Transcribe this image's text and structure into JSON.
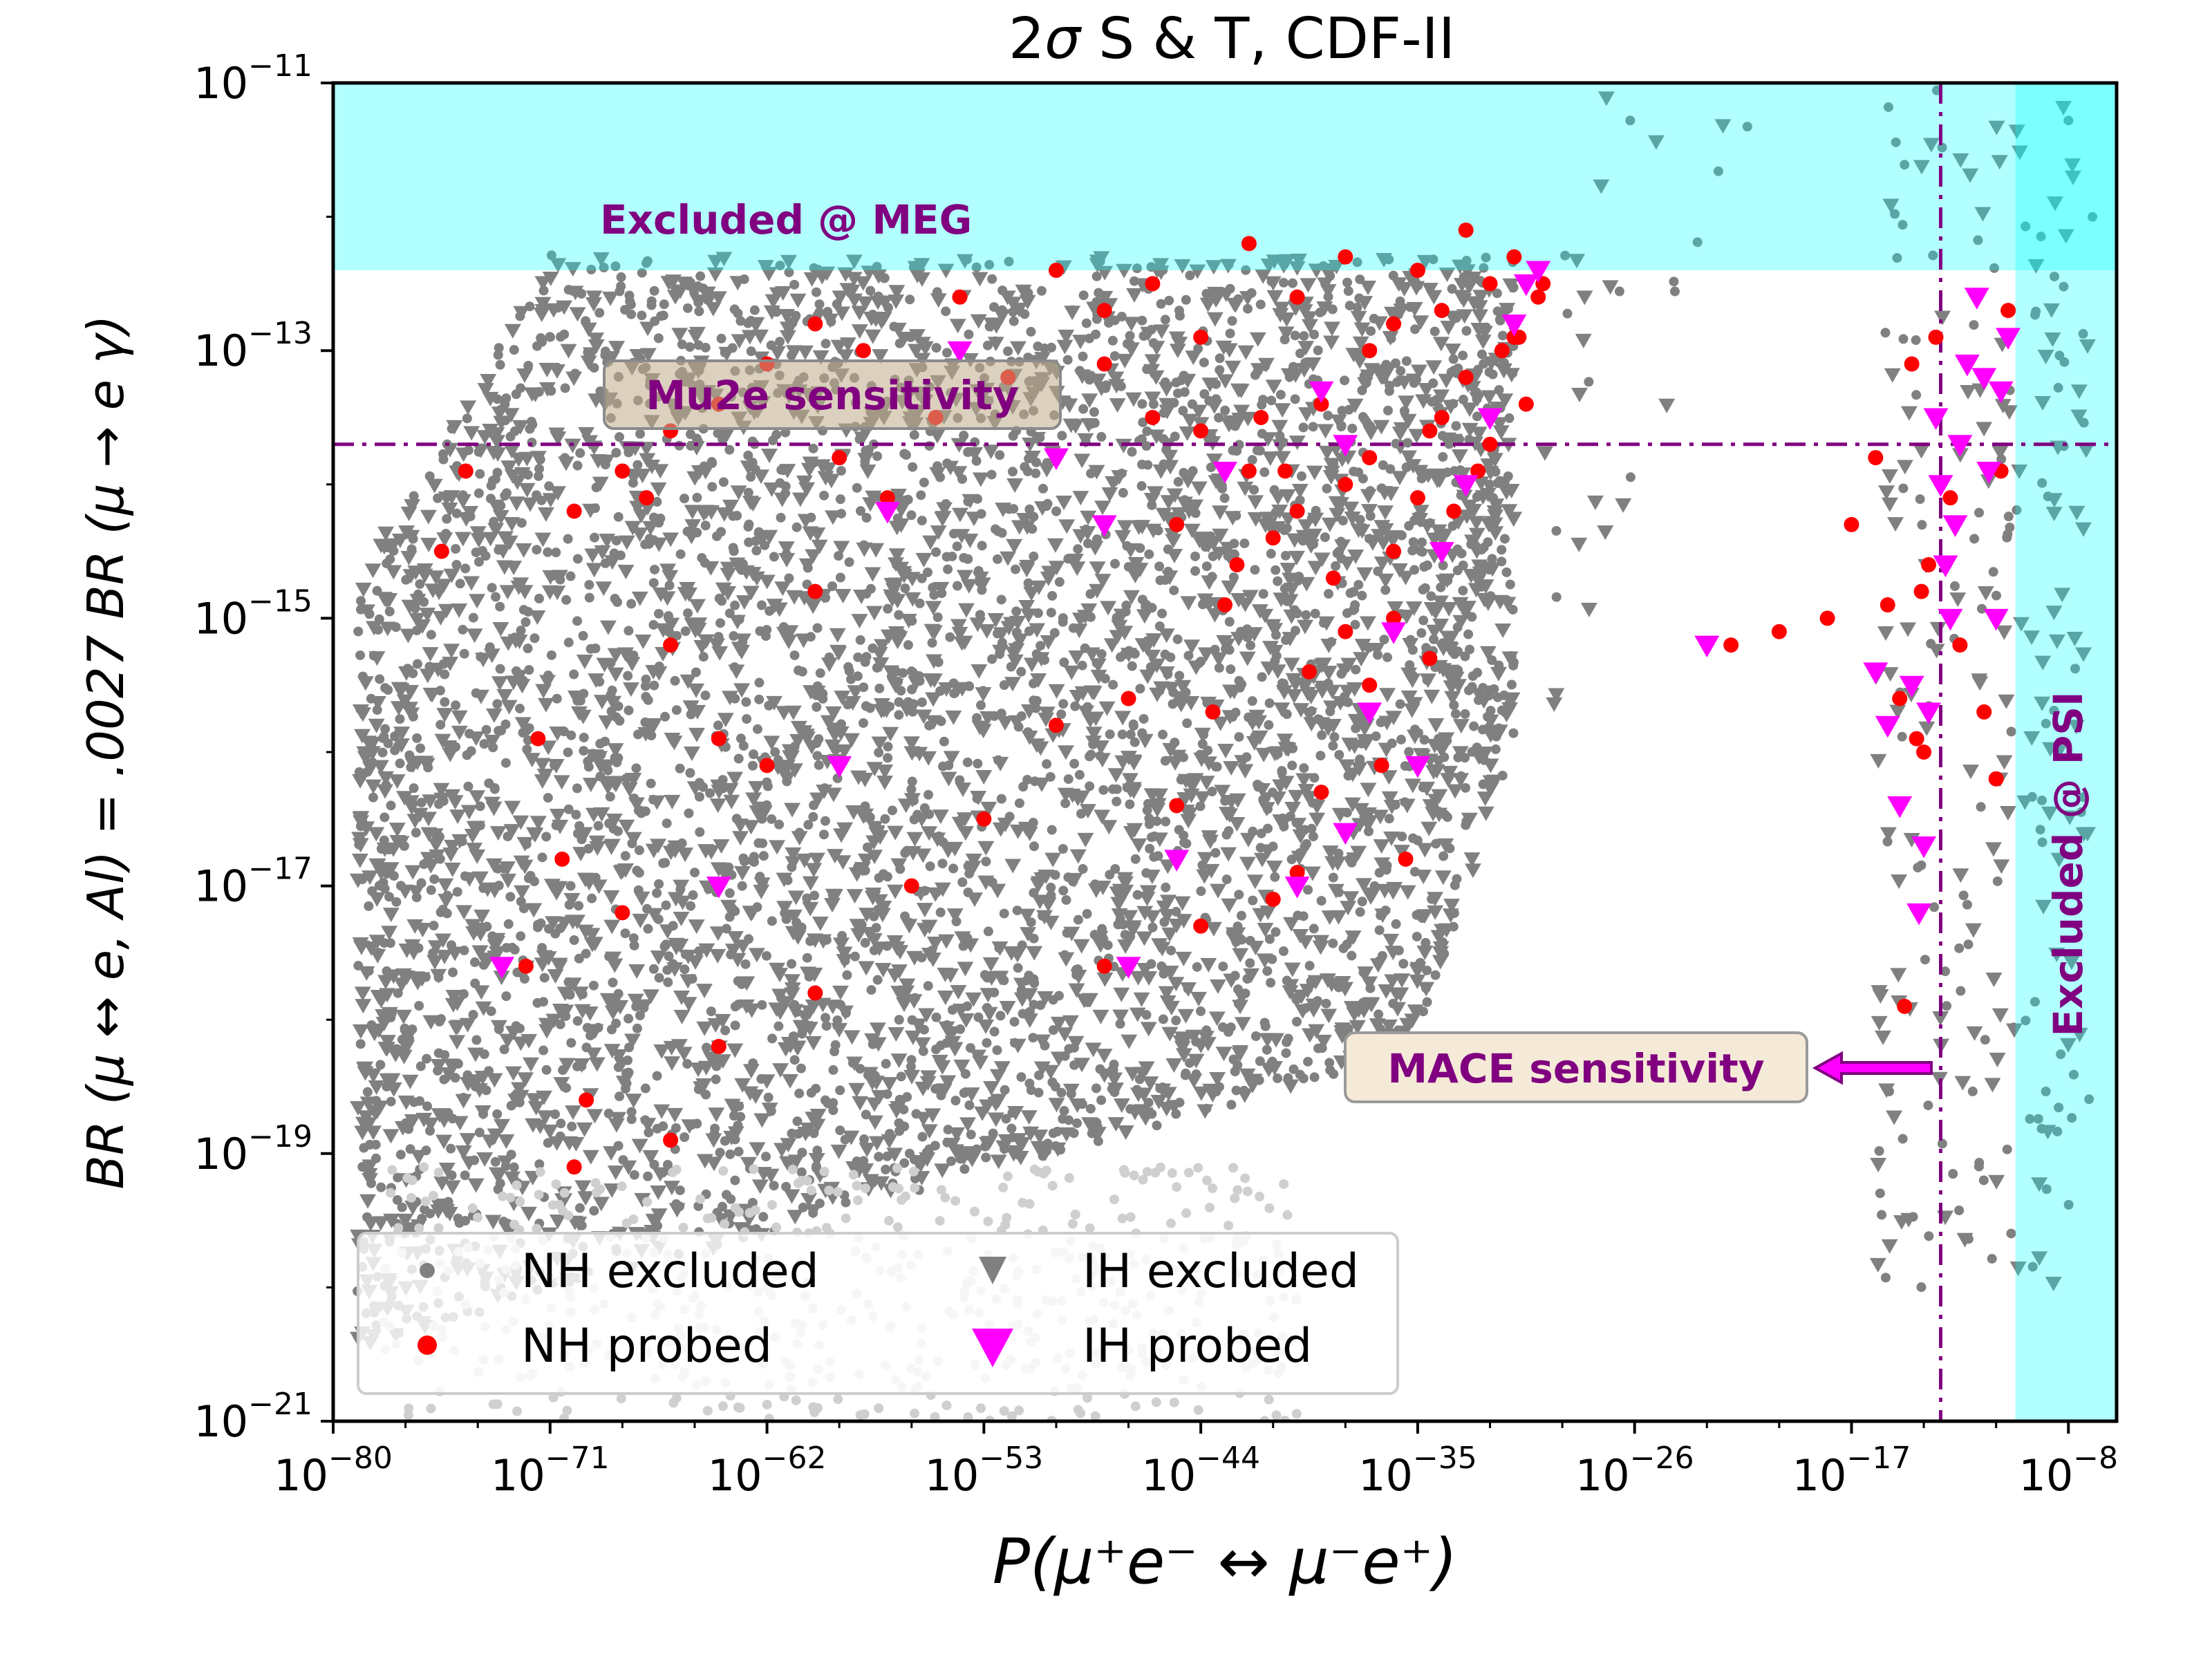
{
  "chart_data": {
    "type": "scatter",
    "title_prefix": "2",
    "title_sigma": "σ",
    "title_suffix": " S & T, CDF-II",
    "xlabel": "P(μ⁺e⁻ ↔ μ⁻e⁺)",
    "ylabel": "BR (μ ↔ e, Al) = .0027 BR (μ → e γ)",
    "x_scale": "log",
    "y_scale": "log",
    "xlim_exp": [
      -80,
      -6
    ],
    "ylim_exp": [
      -21,
      -11
    ],
    "x_ticks": [
      {
        "base": "10",
        "exp": "−80",
        "value": -80
      },
      {
        "base": "10",
        "exp": "−71",
        "value": -71
      },
      {
        "base": "10",
        "exp": "−62",
        "value": -62
      },
      {
        "base": "10",
        "exp": "−53",
        "value": -53
      },
      {
        "base": "10",
        "exp": "−44",
        "value": -44
      },
      {
        "base": "10",
        "exp": "−35",
        "value": -35
      },
      {
        "base": "10",
        "exp": "−26",
        "value": -26
      },
      {
        "base": "10",
        "exp": "−17",
        "value": -17
      },
      {
        "base": "10",
        "exp": "−8",
        "value": -8
      }
    ],
    "y_ticks": [
      {
        "base": "10",
        "exp": "−11",
        "value": -11
      },
      {
        "base": "10",
        "exp": "−13",
        "value": -13
      },
      {
        "base": "10",
        "exp": "−15",
        "value": -15
      },
      {
        "base": "10",
        "exp": "−17",
        "value": -17
      },
      {
        "base": "10",
        "exp": "−19",
        "value": -19
      },
      {
        "base": "10",
        "exp": "−21",
        "value": -21
      }
    ],
    "excluded_regions": [
      {
        "label": "Excluded @ MEG",
        "axis": "y",
        "from_exp": -12.4,
        "to_exp": -11,
        "color": "#00ffff",
        "alpha": 0.3
      },
      {
        "label": "Excluded @ PSI",
        "axis": "x",
        "from_exp": -10.2,
        "to_exp": -6,
        "color": "#00ffff",
        "alpha": 0.3
      }
    ],
    "sensitivity_lines": [
      {
        "label": "Mu2e sensitivity",
        "axis": "y",
        "value_exp": -13.7,
        "color": "#800080",
        "style": "dashdot"
      },
      {
        "label": "MACE sensitivity",
        "axis": "x",
        "value_exp": -13.3,
        "color": "#800080",
        "style": "dashdot"
      }
    ],
    "series": [
      {
        "name": "NH excluded",
        "marker": "circle",
        "color": "#808080"
      },
      {
        "name": "IH excluded",
        "marker": "triangle-down",
        "color": "#808080"
      },
      {
        "name": "NH probed",
        "marker": "circle",
        "color": "#ff0000",
        "points_exp": [
          [
            -74.5,
            -13.9
          ],
          [
            -75.5,
            -14.5
          ],
          [
            -71.5,
            -15.9
          ],
          [
            -70.5,
            -16.8
          ],
          [
            -69.5,
            -18.6
          ],
          [
            -67,
            -14.1
          ],
          [
            -66,
            -15.2
          ],
          [
            -64,
            -15.9
          ],
          [
            -62,
            -16.1
          ],
          [
            -60,
            -14.8
          ],
          [
            -59,
            -13.8
          ],
          [
            -57,
            -14.1
          ],
          [
            -55,
            -13.5
          ],
          [
            -48,
            -13.1
          ],
          [
            -46,
            -13.5
          ],
          [
            -45,
            -14.3
          ],
          [
            -44,
            -13.6
          ],
          [
            -43,
            -14.9
          ],
          [
            -42,
            -13.9
          ],
          [
            -41,
            -14.4
          ],
          [
            -40,
            -14.2
          ],
          [
            -39,
            -13.4
          ],
          [
            -38,
            -14.0
          ],
          [
            -37,
            -13.8
          ],
          [
            -36,
            -14.5
          ],
          [
            -35,
            -14.1
          ],
          [
            -34,
            -13.5
          ],
          [
            -33,
            -13.2
          ],
          [
            -32,
            -13.7
          ],
          [
            -31,
            -12.9
          ],
          [
            -30.5,
            -13.4
          ],
          [
            -30,
            -12.6
          ],
          [
            -36,
            -15.0
          ],
          [
            -37,
            -15.5
          ],
          [
            -38,
            -15.1
          ],
          [
            -39,
            -16.3
          ],
          [
            -40,
            -16.9
          ],
          [
            -41,
            -17.1
          ],
          [
            -45,
            -16.4
          ],
          [
            -47,
            -15.6
          ],
          [
            -50,
            -15.8
          ],
          [
            -44,
            -17.3
          ],
          [
            -48,
            -17.6
          ],
          [
            -53,
            -16.5
          ],
          [
            -56,
            -17.0
          ],
          [
            -60,
            -17.8
          ],
          [
            -64,
            -18.2
          ],
          [
            -66,
            -18.9
          ],
          [
            -68,
            -17.2
          ],
          [
            -70,
            -19.1
          ],
          [
            -72,
            -17.6
          ],
          [
            -31,
            -12.3
          ],
          [
            -32,
            -12.5
          ],
          [
            -33,
            -12.1
          ],
          [
            -34,
            -12.7
          ],
          [
            -35,
            -12.4
          ],
          [
            -36,
            -12.8
          ],
          [
            -37,
            -13.0
          ],
          [
            -38,
            -12.3
          ],
          [
            -40,
            -12.6
          ],
          [
            -42,
            -12.2
          ],
          [
            -44,
            -12.9
          ],
          [
            -46,
            -12.5
          ],
          [
            -48,
            -12.7
          ],
          [
            -50,
            -12.4
          ],
          [
            -52,
            -13.2
          ],
          [
            -54,
            -12.6
          ],
          [
            -58,
            -13.0
          ],
          [
            -60,
            -12.8
          ],
          [
            -62,
            -13.1
          ],
          [
            -64,
            -13.4
          ],
          [
            -66,
            -13.6
          ],
          [
            -68,
            -13.9
          ],
          [
            -70,
            -14.2
          ],
          [
            -36.5,
            -16.1
          ],
          [
            -35.5,
            -16.8
          ],
          [
            -34.5,
            -15.3
          ],
          [
            -38.5,
            -14.7
          ],
          [
            -39.5,
            -15.4
          ],
          [
            -40.5,
            -13.9
          ],
          [
            -41.5,
            -13.5
          ],
          [
            -42.5,
            -14.6
          ],
          [
            -43.5,
            -15.7
          ],
          [
            -30.8,
            -12.9
          ],
          [
            -29.8,
            -12.5
          ],
          [
            -31.5,
            -13.0
          ],
          [
            -32.5,
            -13.9
          ],
          [
            -33.5,
            -14.2
          ],
          [
            -34.5,
            -13.6
          ],
          [
            -22,
            -15.2
          ],
          [
            -20,
            -15.1
          ],
          [
            -18,
            -15.0
          ],
          [
            -17,
            -14.3
          ],
          [
            -16,
            -13.8
          ],
          [
            -15.5,
            -14.9
          ],
          [
            -15,
            -15.6
          ],
          [
            -14.5,
            -13.1
          ],
          [
            -14,
            -16.0
          ],
          [
            -13.8,
            -14.6
          ],
          [
            -13.5,
            -12.9
          ],
          [
            -12.9,
            -14.1
          ],
          [
            -12.5,
            -15.2
          ],
          [
            -11.5,
            -15.7
          ],
          [
            -11,
            -16.2
          ],
          [
            -10.8,
            -13.9
          ],
          [
            -10.5,
            -12.7
          ],
          [
            -14.8,
            -17.9
          ],
          [
            -14.3,
            -15.9
          ],
          [
            -14.1,
            -14.8
          ]
        ]
      },
      {
        "name": "IH probed",
        "marker": "triangle-down",
        "color": "#ff00ff",
        "points_exp": [
          [
            -54,
            -13.0
          ],
          [
            -57,
            -14.2
          ],
          [
            -59,
            -16.1
          ],
          [
            -64,
            -17.0
          ],
          [
            -73,
            -17.6
          ],
          [
            -43,
            -13.9
          ],
          [
            -39,
            -13.3
          ],
          [
            -38,
            -13.7
          ],
          [
            -36,
            -15.1
          ],
          [
            -37,
            -15.7
          ],
          [
            -35,
            -16.1
          ],
          [
            -38,
            -16.6
          ],
          [
            -40,
            -17.0
          ],
          [
            -45,
            -16.8
          ],
          [
            -47,
            -17.6
          ],
          [
            -48,
            -14.3
          ],
          [
            -50,
            -13.8
          ],
          [
            -30,
            -12.4
          ],
          [
            -31,
            -12.8
          ],
          [
            -32,
            -13.5
          ],
          [
            -33,
            -14.0
          ],
          [
            -34,
            -14.5
          ],
          [
            -30.5,
            -12.5
          ],
          [
            -23,
            -15.2
          ],
          [
            -16,
            -15.4
          ],
          [
            -15.5,
            -15.8
          ],
          [
            -15,
            -16.4
          ],
          [
            -14.5,
            -15.5
          ],
          [
            -14,
            -16.7
          ],
          [
            -13.5,
            -13.5
          ],
          [
            -13.3,
            -14.0
          ],
          [
            -13.1,
            -14.6
          ],
          [
            -12.9,
            -15.0
          ],
          [
            -12.5,
            -13.7
          ],
          [
            -12.2,
            -13.1
          ],
          [
            -11.8,
            -12.6
          ],
          [
            -11.5,
            -13.2
          ],
          [
            -11.3,
            -13.9
          ],
          [
            -11,
            -15.0
          ],
          [
            -10.8,
            -13.3
          ],
          [
            -10.5,
            -12.9
          ],
          [
            -14.2,
            -17.2
          ],
          [
            -13.8,
            -15.7
          ],
          [
            -12.7,
            -14.3
          ]
        ]
      }
    ],
    "legend": {
      "location": "lower-left",
      "entries": [
        "NH excluded",
        "IH excluded",
        "NH probed",
        "IH probed"
      ]
    }
  }
}
